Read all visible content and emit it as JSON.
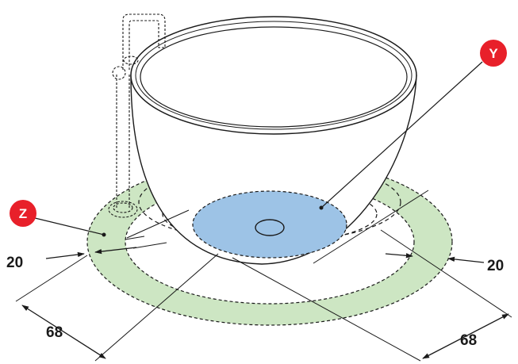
{
  "labels": {
    "y_marker": "Y",
    "z_marker": "Z"
  },
  "dimensions": {
    "left_ring_width": "20",
    "right_ring_width": "20",
    "left_overall": "68",
    "right_overall": "68"
  },
  "colors": {
    "ring_zone": "#cde6c3",
    "floor_zone": "#9dc3e6",
    "badge": "#e8202a",
    "line": "#1a1a1a"
  }
}
